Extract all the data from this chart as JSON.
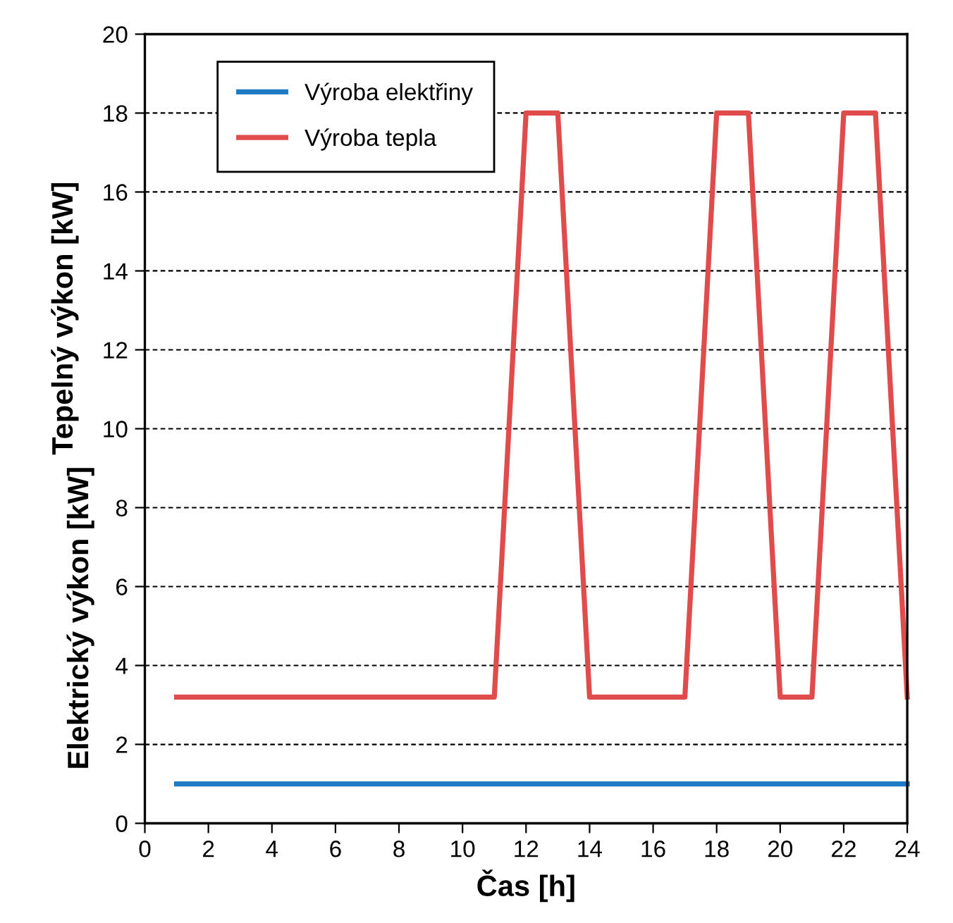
{
  "chart_data": {
    "type": "line",
    "xlabel": "Čas [h]",
    "ylabel": "Elektrický výkon [kW]",
    "annotations": [
      "Tepelný výkon [kW]"
    ],
    "x": [
      1,
      2,
      3,
      4,
      5,
      6,
      7,
      8,
      9,
      10,
      11,
      12,
      13,
      14,
      15,
      16,
      17,
      18,
      19,
      20,
      21,
      22,
      23,
      24
    ],
    "series": [
      {
        "name": "Výroba elektřiny",
        "color": "#1f7cc4",
        "values": [
          1,
          1,
          1,
          1,
          1,
          1,
          1,
          1,
          1,
          1,
          1,
          1,
          1,
          1,
          1,
          1,
          1,
          1,
          1,
          1,
          1,
          1,
          1,
          1
        ]
      },
      {
        "name": "Výroba tepla",
        "color": "#e04b4b",
        "values": [
          3.2,
          3.2,
          3.2,
          3.2,
          3.2,
          3.2,
          3.2,
          3.2,
          3.2,
          3.2,
          3.2,
          18,
          18,
          3.2,
          3.2,
          3.2,
          3.2,
          18,
          18,
          3.2,
          3.2,
          18,
          18,
          3.2
        ]
      }
    ],
    "xlim": [
      0,
      24
    ],
    "xticks": [
      0,
      2,
      4,
      6,
      8,
      10,
      12,
      14,
      16,
      18,
      20,
      22,
      24
    ],
    "ylim": [
      0,
      20
    ],
    "yticks": [
      0,
      2,
      4,
      6,
      8,
      10,
      12,
      14,
      16,
      18,
      20
    ],
    "grid": "y",
    "legend": "top left",
    "marker": "none",
    "line_style": "solid"
  }
}
